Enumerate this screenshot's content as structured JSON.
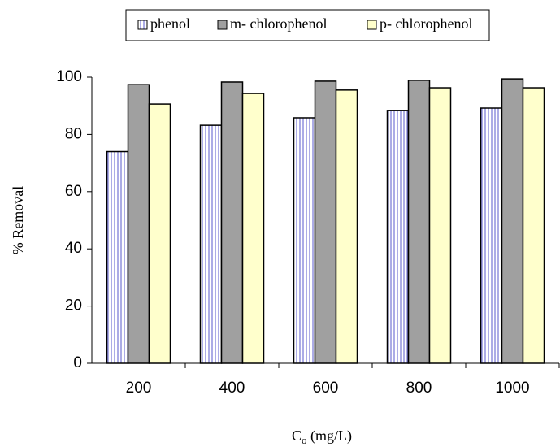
{
  "chart_data": {
    "type": "bar",
    "x_label": {
      "main": "C",
      "sub": "o",
      "rest": " (mg/L)"
    },
    "y_label": "% Removal",
    "categories": [
      "200",
      "400",
      "600",
      "800",
      "1000"
    ],
    "series": [
      {
        "name": "phenol",
        "color": "#5a5acc",
        "pattern": "vertical-stripes",
        "values": [
          74,
          83.2,
          85.8,
          88.4,
          89.2
        ]
      },
      {
        "name": "m- chlorophenol",
        "color": "#a0a0a0",
        "values": [
          97.4,
          98.3,
          98.6,
          98.9,
          99.4
        ]
      },
      {
        "name": "p- chlorophenol",
        "color": "#ffffcc",
        "values": [
          90.6,
          94.3,
          95.5,
          96.3,
          96.3
        ]
      }
    ],
    "ylim": [
      0,
      100
    ],
    "yticks": [
      0,
      20,
      40,
      60,
      80,
      100
    ],
    "legend": "top"
  }
}
